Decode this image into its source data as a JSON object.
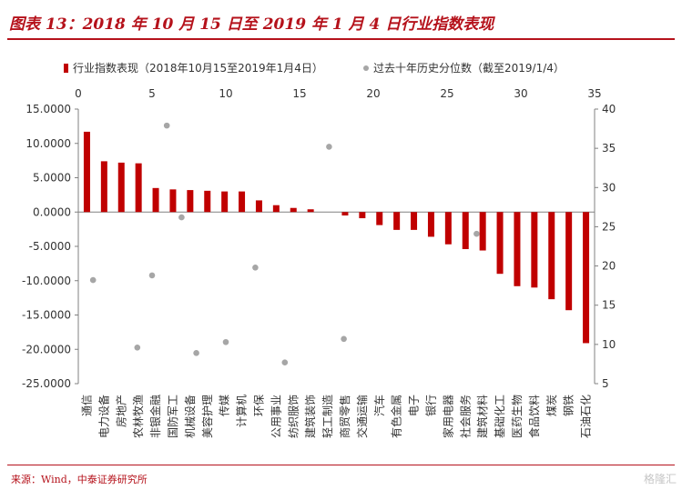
{
  "header": {
    "title": "图表 13：2018 年 10 月 15 日至 2019 年 1 月 4 日行业指数表现"
  },
  "footer": {
    "source": "来源：Wind，中泰证券研究所",
    "watermark": "格隆汇"
  },
  "colors": {
    "brand": "#b5121b",
    "bar": "#c00000",
    "dot": "#a6a6a6"
  },
  "chart_data": {
    "type": "bar",
    "legend_position": "top",
    "grid": false,
    "categories": [
      "通信",
      "电力设备",
      "房地产",
      "农林牧渔",
      "非银金融",
      "国防军工",
      "机械设备",
      "美容护理",
      "传媒",
      "计算机",
      "环保",
      "公用事业",
      "纺织服饰",
      "建筑装饰",
      "轻工制造",
      "商贸零售",
      "交通运输",
      "汽车",
      "有色金属",
      "电子",
      "银行",
      "家用电器",
      "社会服务",
      "建筑材料",
      "基础化工",
      "医药生物",
      "食品饮料",
      "煤炭",
      "钢铁",
      "石油石化"
    ],
    "left_axis": {
      "min": -25,
      "max": 15,
      "step": 5,
      "tick_labels": [
        "15.0000",
        "10.0000",
        "5.0000",
        "0.0000",
        "-5.0000",
        "-10.0000",
        "-15.0000",
        "-20.0000",
        "-25.0000"
      ]
    },
    "right_axis": {
      "min": 5,
      "max": 40,
      "step": 5,
      "tick_labels": [
        "40",
        "35",
        "30",
        "25",
        "20",
        "15",
        "10",
        "5"
      ]
    },
    "top_axis": {
      "min": 0,
      "max": 35,
      "step": 5,
      "tick_labels": [
        "0",
        "5",
        "10",
        "15",
        "20",
        "25",
        "30",
        "35"
      ]
    },
    "series": [
      {
        "name": "行业指数表现（2018年10月15至2019年1月4日）",
        "type": "bar",
        "axis": "left",
        "values": [
          11.7,
          7.4,
          7.2,
          7.1,
          3.5,
          3.3,
          3.2,
          3.1,
          3.0,
          3.0,
          1.7,
          1.0,
          0.6,
          0.4,
          0.0,
          -0.5,
          -0.9,
          -1.9,
          -2.6,
          -2.6,
          -3.6,
          -4.7,
          -5.4,
          -5.6,
          -9.0,
          -10.8,
          -11.0,
          -12.7,
          -14.3,
          -19.1
        ]
      },
      {
        "name": "过去十年历史分位数（截至2019/1/4）",
        "type": "scatter",
        "axis": "right",
        "x": [
          1,
          4,
          5,
          6,
          7,
          8,
          10,
          12,
          14,
          17,
          18,
          27
        ],
        "values": [
          18.2,
          9.6,
          18.8,
          37.9,
          26.2,
          8.9,
          10.3,
          19.8,
          7.7,
          35.2,
          10.7,
          24.1
        ]
      }
    ]
  }
}
